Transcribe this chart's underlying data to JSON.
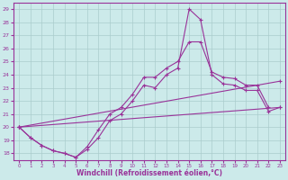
{
  "xlabel": "Windchill (Refroidissement éolien,°C)",
  "x_ticks": [
    0,
    1,
    2,
    3,
    4,
    5,
    6,
    7,
    8,
    9,
    10,
    11,
    12,
    13,
    14,
    15,
    16,
    17,
    18,
    19,
    20,
    21,
    22,
    23
  ],
  "ylim": [
    17.5,
    29.5
  ],
  "xlim": [
    -0.5,
    23.5
  ],
  "yticks": [
    18,
    19,
    20,
    21,
    22,
    23,
    24,
    25,
    26,
    27,
    28,
    29
  ],
  "bg_color": "#cceaea",
  "line_color": "#993399",
  "grid_color": "#aacccc",
  "line1_x": [
    0,
    1,
    2,
    3,
    4,
    5,
    6,
    7,
    8,
    9,
    10,
    11,
    12,
    13,
    14,
    15,
    16,
    17,
    18,
    19,
    20,
    21,
    22
  ],
  "line1_y": [
    20.0,
    19.2,
    18.6,
    18.2,
    18.0,
    17.7,
    18.5,
    19.8,
    21.0,
    21.5,
    22.5,
    23.8,
    23.8,
    24.5,
    25.0,
    26.5,
    26.5,
    24.2,
    23.8,
    23.7,
    23.2,
    23.2,
    21.5
  ],
  "line2_x": [
    0,
    1,
    2,
    3,
    4,
    5,
    6,
    7,
    8,
    9,
    10,
    11,
    12,
    13,
    14,
    15,
    16,
    17,
    18,
    19,
    20,
    21,
    22,
    23
  ],
  "line2_y": [
    20.0,
    19.2,
    18.6,
    18.2,
    18.0,
    17.7,
    18.3,
    19.2,
    20.5,
    21.0,
    22.0,
    23.2,
    23.0,
    24.0,
    24.5,
    29.0,
    28.2,
    24.0,
    23.3,
    23.2,
    22.8,
    22.8,
    21.2,
    21.5
  ],
  "line3_x": [
    0,
    23
  ],
  "line3_y": [
    20.0,
    21.5
  ],
  "line4_x": [
    0,
    23
  ],
  "line4_y": [
    20.0,
    23.5
  ]
}
